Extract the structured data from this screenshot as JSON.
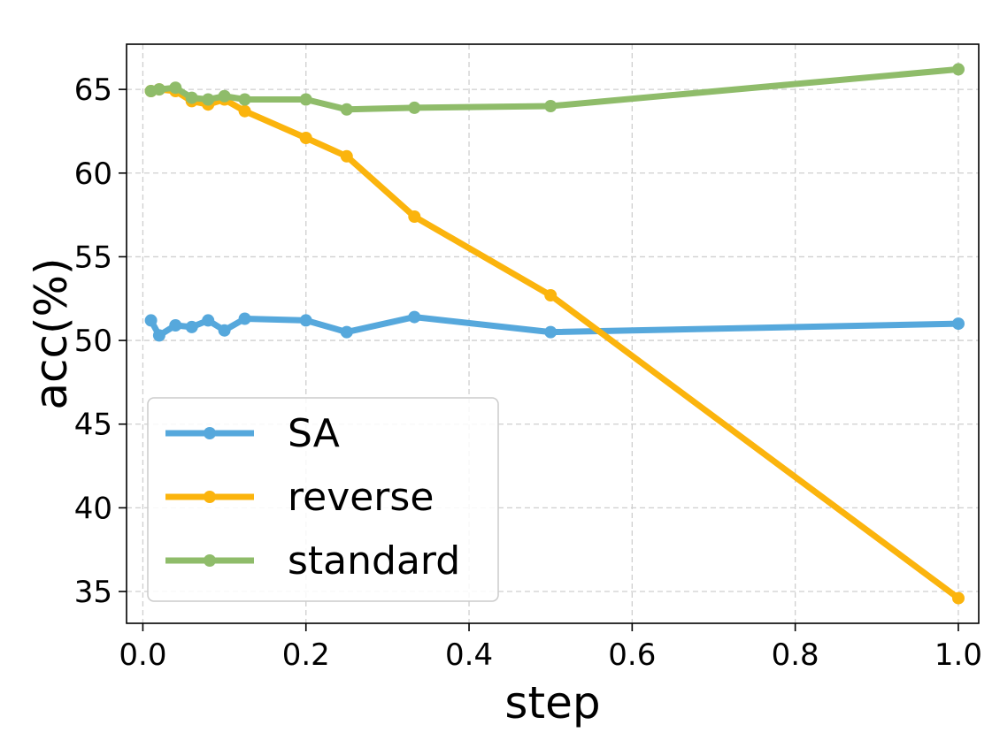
{
  "chart_data": {
    "type": "line",
    "title": "",
    "xlabel": "step",
    "ylabel": "acc(%)",
    "xlim": [
      -0.02,
      1.025
    ],
    "ylim": [
      33.1,
      67.7
    ],
    "xticks": [
      0.0,
      0.2,
      0.4,
      0.6,
      0.8,
      1.0
    ],
    "xtick_labels": [
      "0.0",
      "0.2",
      "0.4",
      "0.6",
      "0.8",
      "1.0"
    ],
    "yticks": [
      35,
      40,
      45,
      50,
      55,
      60,
      65
    ],
    "ytick_labels": [
      "35",
      "40",
      "45",
      "50",
      "55",
      "60",
      "65"
    ],
    "grid": true,
    "legend_position": "lower-left",
    "series": [
      {
        "name": "SA",
        "color": "#56a8dc",
        "x": [
          0.01,
          0.02,
          0.04,
          0.06,
          0.08,
          0.1,
          0.125,
          0.2,
          0.25,
          0.333,
          0.5,
          1.0
        ],
        "y": [
          51.2,
          50.3,
          50.9,
          50.8,
          51.2,
          50.6,
          51.3,
          51.2,
          50.5,
          51.4,
          50.5,
          51.0
        ]
      },
      {
        "name": "reverse",
        "color": "#fbb40d",
        "x": [
          0.01,
          0.02,
          0.04,
          0.06,
          0.08,
          0.1,
          0.125,
          0.2,
          0.25,
          0.333,
          0.5,
          1.0
        ],
        "y": [
          64.9,
          65.0,
          64.9,
          64.3,
          64.1,
          64.4,
          63.7,
          62.1,
          61.0,
          57.4,
          52.7,
          34.6
        ]
      },
      {
        "name": "standard",
        "color": "#8fbc6a",
        "x": [
          0.01,
          0.02,
          0.04,
          0.06,
          0.08,
          0.1,
          0.125,
          0.2,
          0.25,
          0.333,
          0.5,
          1.0
        ],
        "y": [
          64.9,
          65.0,
          65.1,
          64.5,
          64.4,
          64.6,
          64.4,
          64.4,
          63.8,
          63.9,
          64.0,
          66.2
        ]
      }
    ]
  }
}
